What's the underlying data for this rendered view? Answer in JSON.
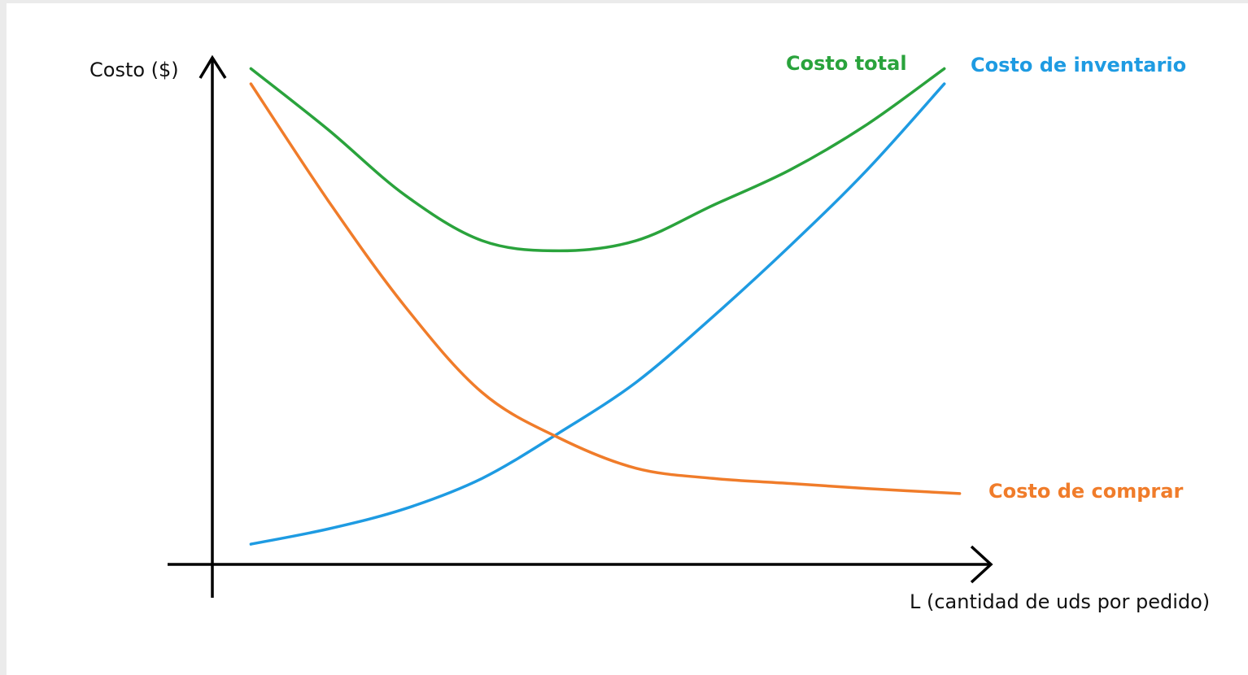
{
  "chart_data": {
    "type": "line",
    "title": "",
    "xlabel": "L (cantidad de uds por pedido)",
    "ylabel": "Costo ($)",
    "xlim": [
      0,
      10
    ],
    "ylim": [
      0,
      10
    ],
    "grid": false,
    "ticks": false,
    "legend": "inline-right",
    "series": [
      {
        "name": "Costo total",
        "color": "#2aa33c",
        "x": [
          0.5,
          1.5,
          2.5,
          3.5,
          4.5,
          5.5,
          6.5,
          7.5,
          8.5,
          9.5
        ],
        "y": [
          9.8,
          8.6,
          7.3,
          6.4,
          6.2,
          6.4,
          7.1,
          7.8,
          8.7,
          9.8
        ]
      },
      {
        "name": "Costo de inventario",
        "color": "#1e9be2",
        "x": [
          0.5,
          1.5,
          2.5,
          3.5,
          4.5,
          5.5,
          6.5,
          7.5,
          8.5,
          9.5
        ],
        "y": [
          0.4,
          0.7,
          1.1,
          1.7,
          2.6,
          3.6,
          4.9,
          6.3,
          7.8,
          9.5
        ]
      },
      {
        "name": "Costo de comprar",
        "color": "#f07c2a",
        "x": [
          0.5,
          1.5,
          2.5,
          3.5,
          4.5,
          5.5,
          6.5,
          7.5,
          8.5,
          9.7
        ],
        "y": [
          9.5,
          7.2,
          5.1,
          3.4,
          2.5,
          1.9,
          1.7,
          1.6,
          1.5,
          1.4
        ]
      }
    ]
  }
}
